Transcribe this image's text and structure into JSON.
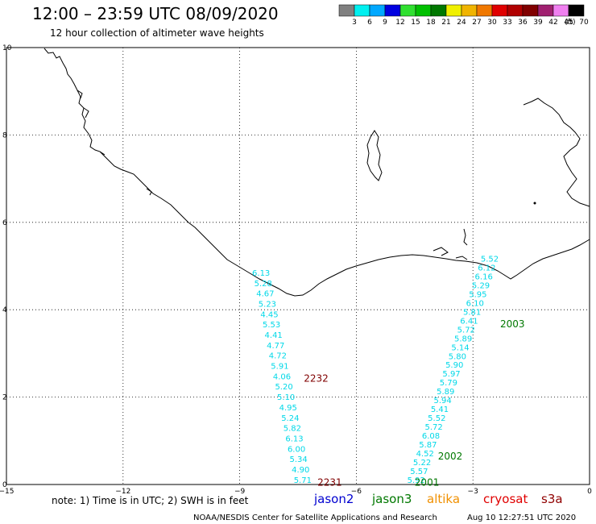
{
  "title": "12:00 – 23:59 UTC 08/09/2020",
  "subtitle": "12 hour collection of altimeter wave heights",
  "colorbar": {
    "colors": [
      "#808080",
      "#00f0f0",
      "#00a8ff",
      "#0000e0",
      "#30e030",
      "#00c000",
      "#007800",
      "#f0f000",
      "#f0b400",
      "#f07800",
      "#e00000",
      "#b00000",
      "#800000",
      "#a02070",
      "#f080f0",
      "#000000"
    ],
    "labels": [
      "3",
      "6",
      "9",
      "12",
      "15",
      "18",
      "21",
      "24",
      "27",
      "30",
      "33",
      "36",
      "39",
      "42",
      "45",
      "70"
    ],
    "unit": "(ft)"
  },
  "axes": {
    "lon_ticks": [
      "−15",
      "−12",
      "−9",
      "−6",
      "−3",
      "0"
    ],
    "lat_ticks": [
      "0",
      "2",
      "4",
      "6",
      "8",
      "10"
    ],
    "lon_values": [
      -15,
      -12,
      -9,
      -6,
      -3,
      0
    ],
    "lat_values": [
      0,
      2,
      4,
      6,
      8,
      10
    ],
    "xlim": [
      -15,
      0
    ],
    "ylim": [
      0,
      10
    ],
    "grid": true
  },
  "tracks": [
    {
      "satellite": "jason3",
      "values": [
        "6.13",
        "5.28",
        "4.67",
        "5.23",
        "4.45",
        "5.53",
        "4.41",
        "4.77",
        "4.72",
        "5.91",
        "4.06",
        "5.20",
        "5.10",
        "4.95",
        "5.24",
        "5.82",
        "6.13",
        "6.00",
        "5.34",
        "4.90",
        "5.71"
      ],
      "start": [
        -8.68,
        4.78
      ],
      "end": [
        -7.61,
        0.04
      ]
    },
    {
      "satellite": "jason3",
      "values": [
        "5.52",
        "6.12",
        "6.16",
        "5.29",
        "5.95",
        "6.10",
        "5.81",
        "6.41",
        "5.72",
        "5.89",
        "5.14",
        "5.80",
        "5.90",
        "5.97",
        "5.79",
        "5.89",
        "5.94",
        "5.41",
        "5.52",
        "5.72",
        "6.08",
        "5.87",
        "4.52",
        "5.22",
        "5.57",
        "5.92"
      ],
      "start": [
        -2.8,
        5.1
      ],
      "end": [
        -4.69,
        0.04
      ]
    }
  ],
  "pass_labels": [
    {
      "text": "2232",
      "color": "#800000",
      "pos": [
        -7.35,
        2.35
      ]
    },
    {
      "text": "2231",
      "color": "#800000",
      "pos": [
        -7.0,
        -0.03
      ]
    },
    {
      "text": "2003",
      "color": "#007800",
      "pos": [
        -2.3,
        3.6
      ]
    },
    {
      "text": "2002",
      "color": "#007800",
      "pos": [
        -3.9,
        0.57
      ]
    },
    {
      "text": "2001",
      "color": "#007800",
      "pos": [
        -4.5,
        -0.03
      ]
    }
  ],
  "note": "note:  1) Time is in UTC;  2) SWH is in feet",
  "satellites": [
    {
      "name": "jason2",
      "color": "#0000d0"
    },
    {
      "name": "jason3",
      "color": "#007800"
    },
    {
      "name": "altika",
      "color": "#f09000"
    },
    {
      "name": "cryosat",
      "color": "#e00000"
    },
    {
      "name": "s3a",
      "color": "#900000"
    }
  ],
  "credit": "NOAA/NESDIS Center for Satellite Applications and Research",
  "timestamp": "Aug 10 12:27:51 UTC 2020"
}
